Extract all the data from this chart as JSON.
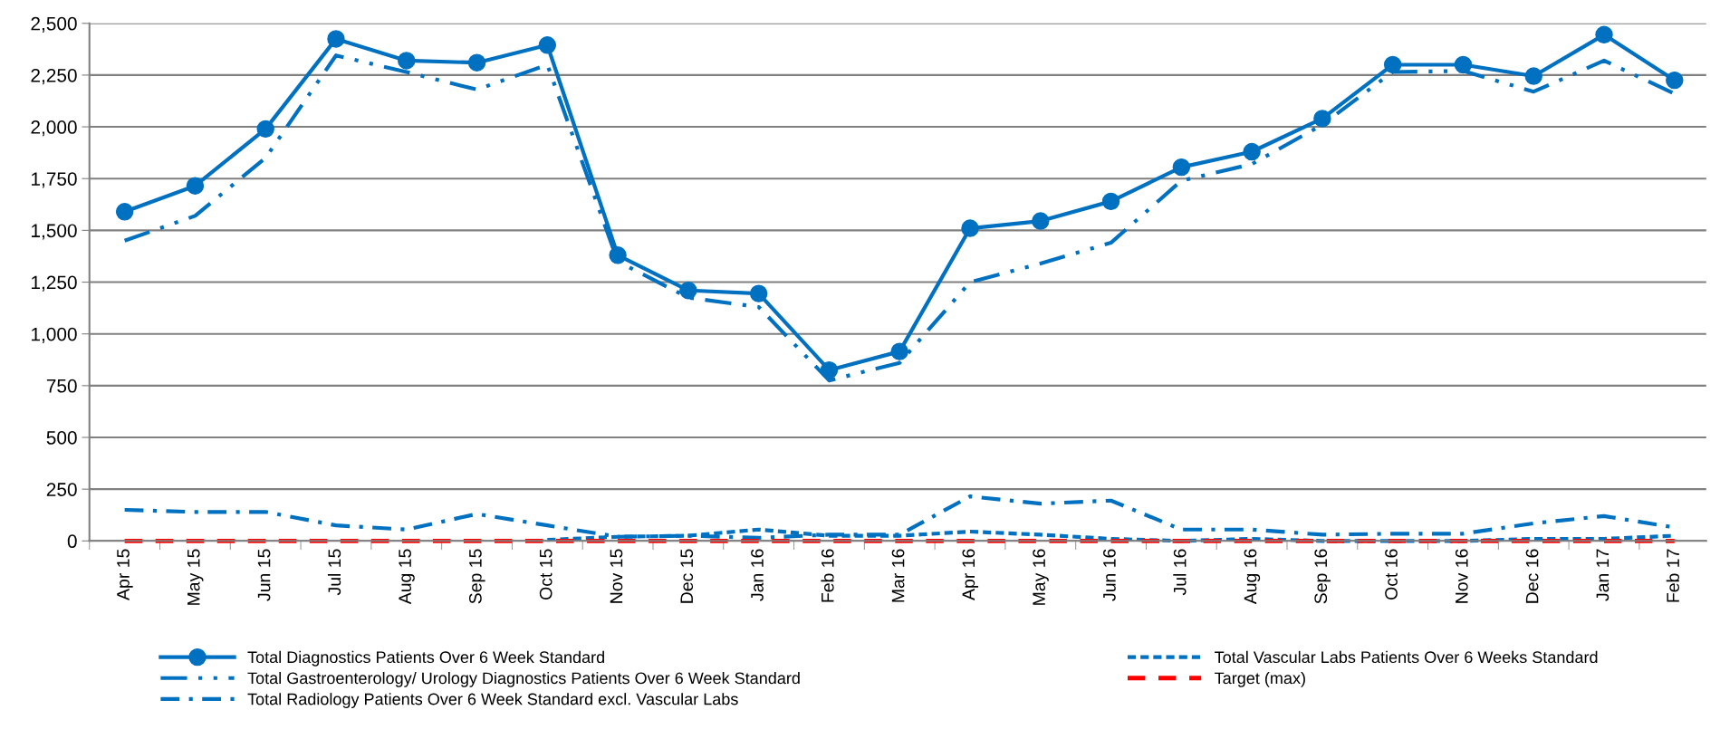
{
  "chart_data": {
    "type": "line",
    "categories": [
      "Apr 15",
      "May 15",
      "Jun 15",
      "Jul 15",
      "Aug 15",
      "Sep 15",
      "Oct 15",
      "Nov 15",
      "Dec 15",
      "Jan 16",
      "Feb 16",
      "Mar 16",
      "Apr 16",
      "May 16",
      "Jun 16",
      "Jul 16",
      "Aug 16",
      "Sep 16",
      "Oct 16",
      "Nov 16",
      "Dec 16",
      "Jan 17",
      "Feb 17"
    ],
    "series": [
      {
        "name": "Total Diagnostics Patients Over 6 Week Standard",
        "color": "#0070c0",
        "marker": "circle",
        "line_style": "solid",
        "values": [
          1590,
          1715,
          1990,
          2425,
          2320,
          2310,
          2395,
          1380,
          1210,
          1195,
          825,
          915,
          1510,
          1545,
          1640,
          1805,
          1880,
          2040,
          2300,
          2300,
          2245,
          2445,
          2225
        ]
      },
      {
        "name": "Total Gastroenterology/ Urology Diagnostics Patients Over 6 Week Standard",
        "color": "#0070c0",
        "marker": "none",
        "line_style": "dashdotdot",
        "values": [
          1450,
          1570,
          1850,
          2345,
          2265,
          2180,
          2300,
          1350,
          1175,
          1130,
          775,
          860,
          1250,
          1340,
          1440,
          1740,
          1820,
          2010,
          2265,
          2270,
          2170,
          2320,
          2160
        ]
      },
      {
        "name": "Total Radiology Patients Over 6 Week Standard excl. Vascular Labs",
        "color": "#0070c0",
        "marker": "none",
        "line_style": "dashdot",
        "values": [
          150,
          140,
          140,
          75,
          55,
          130,
          75,
          20,
          25,
          15,
          30,
          30,
          215,
          180,
          195,
          55,
          55,
          30,
          35,
          35,
          85,
          120,
          65
        ]
      },
      {
        "name": "Total Vascular Labs Patients Over 6 Weeks Standard",
        "color": "#0070c0",
        "marker": "none",
        "line_style": "dashed",
        "values": [
          null,
          null,
          null,
          null,
          null,
          null,
          5,
          20,
          25,
          55,
          25,
          25,
          45,
          30,
          10,
          0,
          10,
          0,
          0,
          0,
          10,
          10,
          25
        ]
      },
      {
        "name": "Target (max)",
        "color": "#ff0000",
        "marker": "none",
        "line_style": "longdash",
        "values": [
          0,
          0,
          0,
          0,
          0,
          0,
          0,
          0,
          0,
          0,
          0,
          0,
          0,
          0,
          0,
          0,
          0,
          0,
          0,
          0,
          0,
          0,
          0
        ]
      }
    ],
    "ylim": [
      0,
      2500
    ],
    "yticks": [
      0,
      250,
      500,
      750,
      {
        "value": 1000,
        "label": "1,000"
      },
      {
        "value": 1250,
        "label": "1,250"
      },
      {
        "value": 1500,
        "label": "1,500"
      },
      {
        "value": 1750,
        "label": "1,750"
      },
      {
        "value": 2000,
        "label": "2,000"
      },
      {
        "value": 2250,
        "label": "2,250"
      },
      {
        "value": 2500,
        "label": "2,500"
      }
    ],
    "grid": "y",
    "legend": "bottom"
  }
}
